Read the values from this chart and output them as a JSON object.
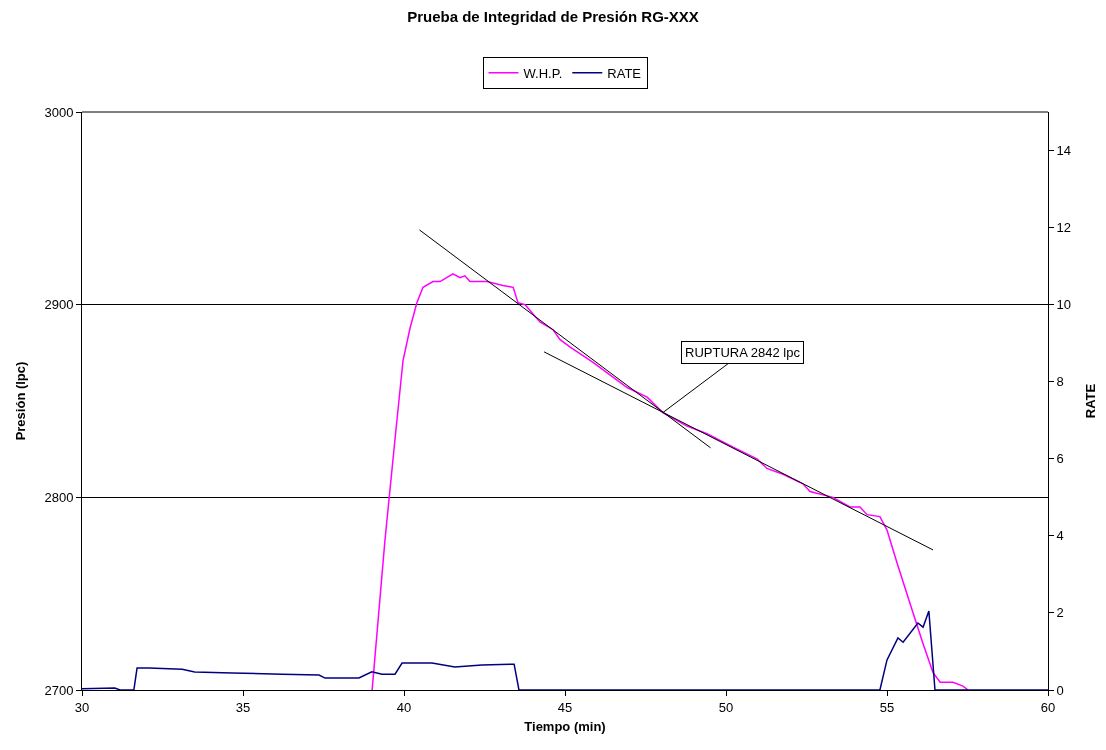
{
  "chart_data": {
    "type": "line",
    "title": "Prueba de Integridad de Presión RG-XXX",
    "xlabel": "Tiempo (min)",
    "ylabel": "Presión (lpc)",
    "y2label": "RATE",
    "xlim": [
      30,
      60
    ],
    "xticks": [
      30,
      35,
      40,
      45,
      50,
      55,
      60
    ],
    "ylim": [
      2700,
      3000
    ],
    "yticks": [
      2700,
      2800,
      2900,
      3000
    ],
    "y2lim": [
      0,
      15
    ],
    "y2ticks": [
      0,
      2,
      4,
      6,
      8,
      10,
      12,
      14
    ],
    "grid": "y",
    "legend": "top",
    "marker": "none",
    "line_style": "solid",
    "series": [
      {
        "name": "W.H.P.",
        "color": "#ff00ff",
        "x": [
          39.01,
          39.41,
          39.72,
          39.97,
          40.19,
          40.4,
          40.59,
          40.9,
          41.12,
          41.52,
          41.74,
          41.89,
          42.05,
          42.58,
          43.07,
          43.39,
          43.54,
          43.76,
          44.22,
          44.63,
          44.84,
          45.16,
          45.87,
          46.93,
          47.55,
          48.04,
          48.79,
          49.41,
          50.22,
          50.96,
          51.27,
          51.77,
          52.39,
          52.61,
          53.32,
          53.85,
          54.16,
          54.38,
          54.78,
          55.0,
          55.31,
          55.81,
          56.12,
          56.43,
          56.65,
          57.05,
          57.36,
          57.52
        ],
        "values": [
          2700,
          2778,
          2830,
          2871,
          2888,
          2901,
          2909,
          2912,
          2912,
          2916,
          2914,
          2915,
          2912,
          2912,
          2910,
          2909,
          2901,
          2900,
          2891,
          2887,
          2882,
          2878,
          2870,
          2857,
          2852,
          2844,
          2837,
          2833,
          2826,
          2820,
          2815,
          2812,
          2807,
          2803,
          2800,
          2795,
          2795,
          2791,
          2790,
          2783,
          2766,
          2740,
          2724,
          2709,
          2704,
          2704,
          2702,
          2700
        ]
      },
      {
        "name": "RATE",
        "color": "#000080",
        "axis": "y2",
        "x": [
          30,
          31.02,
          31.18,
          31.61,
          31.71,
          32.08,
          33.11,
          33.5,
          34.66,
          36.21,
          37.36,
          37.55,
          38.6,
          39.0,
          39.32,
          39.72,
          39.94,
          40.87,
          41.58,
          42.42,
          43.42,
          43.57,
          54.78,
          55.0,
          55.34,
          55.5,
          55.96,
          56.12,
          56.3,
          56.49,
          60
        ],
        "values": [
          0.03,
          0.05,
          0,
          0,
          0.57,
          0.57,
          0.54,
          0.47,
          0.44,
          0.41,
          0.39,
          0.31,
          0.31,
          0.47,
          0.41,
          0.41,
          0.7,
          0.7,
          0.6,
          0.65,
          0.67,
          0,
          0,
          0.78,
          1.35,
          1.24,
          1.74,
          1.63,
          2.05,
          0,
          0
        ]
      },
      {
        "type": "line",
        "color": "#000000",
        "x": [
          40.48,
          49.52
        ],
        "values": [
          2938.8,
          2825.7
        ]
      },
      {
        "type": "line",
        "color": "#000000",
        "x": [
          44.35,
          56.43
        ],
        "values": [
          2875.5,
          2772.7
        ]
      }
    ],
    "annotations": [
      {
        "text": "RUPTURA 2842 lpc",
        "x": 48.04,
        "y": 2844
      }
    ]
  }
}
